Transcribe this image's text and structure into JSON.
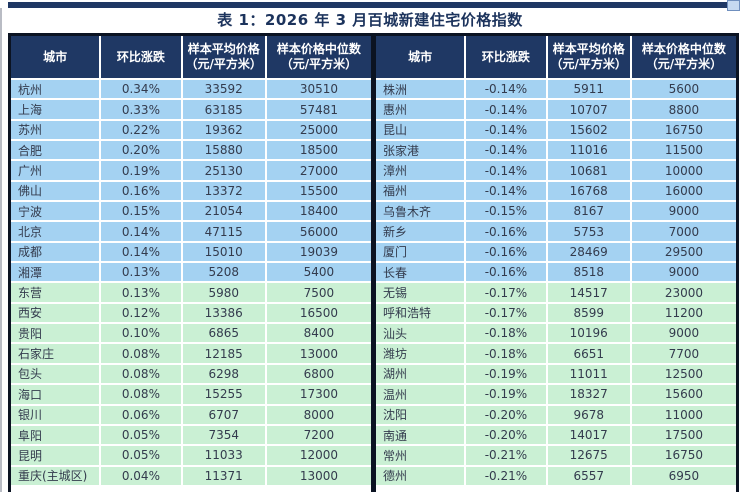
{
  "title": "表 1：2026 年 3 月百城新建住宅价格指数",
  "colors": {
    "header_bg": "#1F3864",
    "row_blue": "#A4D2F2",
    "row_green": "#CAF0D4",
    "border": "#0B1322",
    "title_text": "#1C335C",
    "cell_text": "#333B4D",
    "corner_square": "#C5D9F1"
  },
  "columns": [
    {
      "label": "城市",
      "sub": ""
    },
    {
      "label": "环比涨跌",
      "sub": ""
    },
    {
      "label": "样本平均价格",
      "sub": "（元/平方米）"
    },
    {
      "label": "样本价格中位数",
      "sub": "（元/平方米）"
    }
  ],
  "tables": [
    {
      "name": "left",
      "rows": [
        {
          "city": "杭州",
          "change": "0.34%",
          "avg": "33592",
          "median": "30510",
          "band": "blue"
        },
        {
          "city": "上海",
          "change": "0.33%",
          "avg": "63185",
          "median": "57481",
          "band": "blue"
        },
        {
          "city": "苏州",
          "change": "0.22%",
          "avg": "19362",
          "median": "25000",
          "band": "blue"
        },
        {
          "city": "合肥",
          "change": "0.20%",
          "avg": "15880",
          "median": "18500",
          "band": "blue"
        },
        {
          "city": "广州",
          "change": "0.19%",
          "avg": "25130",
          "median": "27000",
          "band": "blue"
        },
        {
          "city": "佛山",
          "change": "0.16%",
          "avg": "13372",
          "median": "15500",
          "band": "blue"
        },
        {
          "city": "宁波",
          "change": "0.15%",
          "avg": "21054",
          "median": "18400",
          "band": "blue"
        },
        {
          "city": "北京",
          "change": "0.14%",
          "avg": "47115",
          "median": "56000",
          "band": "blue"
        },
        {
          "city": "成都",
          "change": "0.14%",
          "avg": "15010",
          "median": "19039",
          "band": "blue"
        },
        {
          "city": "湘潭",
          "change": "0.13%",
          "avg": "5208",
          "median": "5400",
          "band": "blue"
        },
        {
          "city": "东营",
          "change": "0.13%",
          "avg": "5980",
          "median": "7500",
          "band": "green"
        },
        {
          "city": "西安",
          "change": "0.12%",
          "avg": "13386",
          "median": "16500",
          "band": "green"
        },
        {
          "city": "贵阳",
          "change": "0.10%",
          "avg": "6865",
          "median": "8400",
          "band": "green"
        },
        {
          "city": "石家庄",
          "change": "0.08%",
          "avg": "12185",
          "median": "13000",
          "band": "green"
        },
        {
          "city": "包头",
          "change": "0.08%",
          "avg": "6298",
          "median": "6800",
          "band": "green"
        },
        {
          "city": "海口",
          "change": "0.08%",
          "avg": "15255",
          "median": "17300",
          "band": "green"
        },
        {
          "city": "银川",
          "change": "0.06%",
          "avg": "6707",
          "median": "8000",
          "band": "green"
        },
        {
          "city": "阜阳",
          "change": "0.05%",
          "avg": "7354",
          "median": "7200",
          "band": "green"
        },
        {
          "city": "昆明",
          "change": "0.05%",
          "avg": "11033",
          "median": "12000",
          "band": "green"
        },
        {
          "city": "重庆(主城区)",
          "change": "0.04%",
          "avg": "11371",
          "median": "13000",
          "band": "green"
        }
      ]
    },
    {
      "name": "right",
      "rows": [
        {
          "city": "株洲",
          "change": "-0.14%",
          "avg": "5911",
          "median": "5600",
          "band": "blue"
        },
        {
          "city": "惠州",
          "change": "-0.14%",
          "avg": "10707",
          "median": "8800",
          "band": "blue"
        },
        {
          "city": "昆山",
          "change": "-0.14%",
          "avg": "15602",
          "median": "16750",
          "band": "blue"
        },
        {
          "city": "张家港",
          "change": "-0.14%",
          "avg": "11016",
          "median": "11500",
          "band": "blue"
        },
        {
          "city": "漳州",
          "change": "-0.14%",
          "avg": "10681",
          "median": "10000",
          "band": "blue"
        },
        {
          "city": "福州",
          "change": "-0.14%",
          "avg": "16768",
          "median": "16000",
          "band": "blue"
        },
        {
          "city": "乌鲁木齐",
          "change": "-0.15%",
          "avg": "8167",
          "median": "9000",
          "band": "blue"
        },
        {
          "city": "新乡",
          "change": "-0.16%",
          "avg": "5753",
          "median": "7000",
          "band": "blue"
        },
        {
          "city": "厦门",
          "change": "-0.16%",
          "avg": "28469",
          "median": "29500",
          "band": "blue"
        },
        {
          "city": "长春",
          "change": "-0.16%",
          "avg": "8518",
          "median": "9000",
          "band": "blue"
        },
        {
          "city": "无锡",
          "change": "-0.17%",
          "avg": "14517",
          "median": "23000",
          "band": "green"
        },
        {
          "city": "呼和浩特",
          "change": "-0.17%",
          "avg": "8599",
          "median": "11200",
          "band": "green"
        },
        {
          "city": "汕头",
          "change": "-0.18%",
          "avg": "10196",
          "median": "9000",
          "band": "green"
        },
        {
          "city": "潍坊",
          "change": "-0.18%",
          "avg": "6651",
          "median": "7700",
          "band": "green"
        },
        {
          "city": "湖州",
          "change": "-0.19%",
          "avg": "11011",
          "median": "12500",
          "band": "green"
        },
        {
          "city": "温州",
          "change": "-0.19%",
          "avg": "18327",
          "median": "15600",
          "band": "green"
        },
        {
          "city": "沈阳",
          "change": "-0.20%",
          "avg": "9678",
          "median": "11000",
          "band": "green"
        },
        {
          "city": "南通",
          "change": "-0.20%",
          "avg": "14017",
          "median": "17500",
          "band": "green"
        },
        {
          "city": "常州",
          "change": "-0.21%",
          "avg": "12675",
          "median": "16750",
          "band": "green"
        },
        {
          "city": "德州",
          "change": "-0.21%",
          "avg": "6557",
          "median": "6950",
          "band": "green"
        }
      ]
    }
  ]
}
